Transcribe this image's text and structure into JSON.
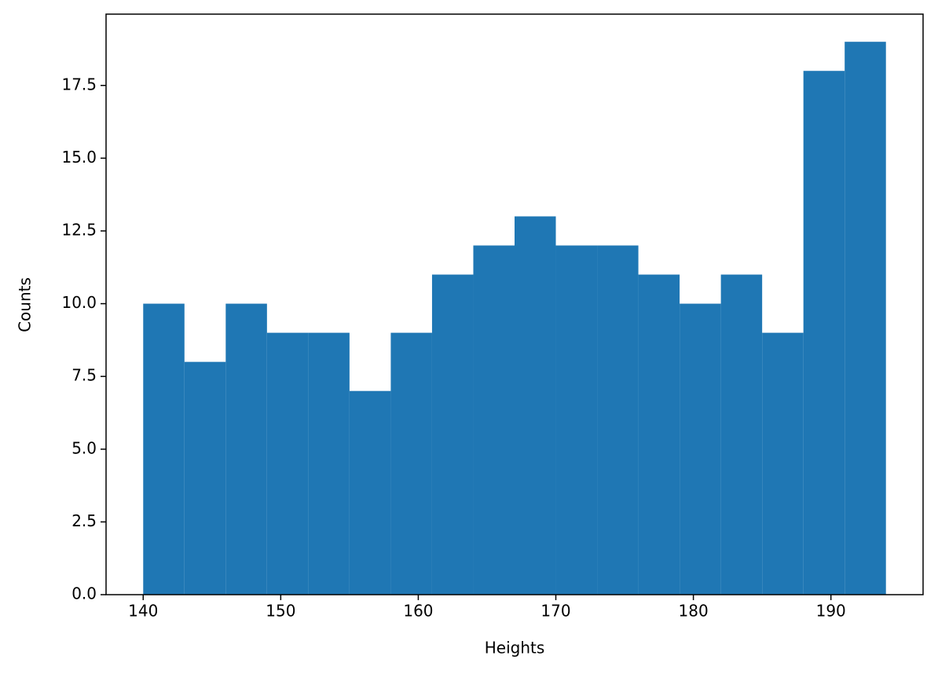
{
  "chart_data": {
    "type": "histogram",
    "xlabel": "Heights",
    "ylabel": "Counts",
    "bins": [
      140,
      143,
      146,
      149,
      152,
      155,
      158,
      161,
      164,
      167,
      170,
      173,
      176,
      179,
      182,
      185,
      188,
      191,
      194
    ],
    "values": [
      10,
      8,
      10,
      9,
      9,
      7,
      9,
      11,
      12,
      13,
      12,
      12,
      11,
      10,
      11,
      9,
      18,
      19
    ],
    "color": "#1f77b4",
    "xlim": [
      137.3,
      196.7
    ],
    "ylim": [
      0,
      19.95
    ],
    "xticks": [
      140,
      150,
      160,
      170,
      180,
      190
    ],
    "yticks": [
      {
        "value": 0,
        "label": "0.0"
      },
      {
        "value": 2.5,
        "label": "2.5"
      },
      {
        "value": 5,
        "label": "5.0"
      },
      {
        "value": 7.5,
        "label": "7.5"
      },
      {
        "value": 10,
        "label": "10.0"
      },
      {
        "value": 12.5,
        "label": "12.5"
      },
      {
        "value": 15,
        "label": "15.0"
      },
      {
        "value": 17.5,
        "label": "17.5"
      }
    ]
  }
}
